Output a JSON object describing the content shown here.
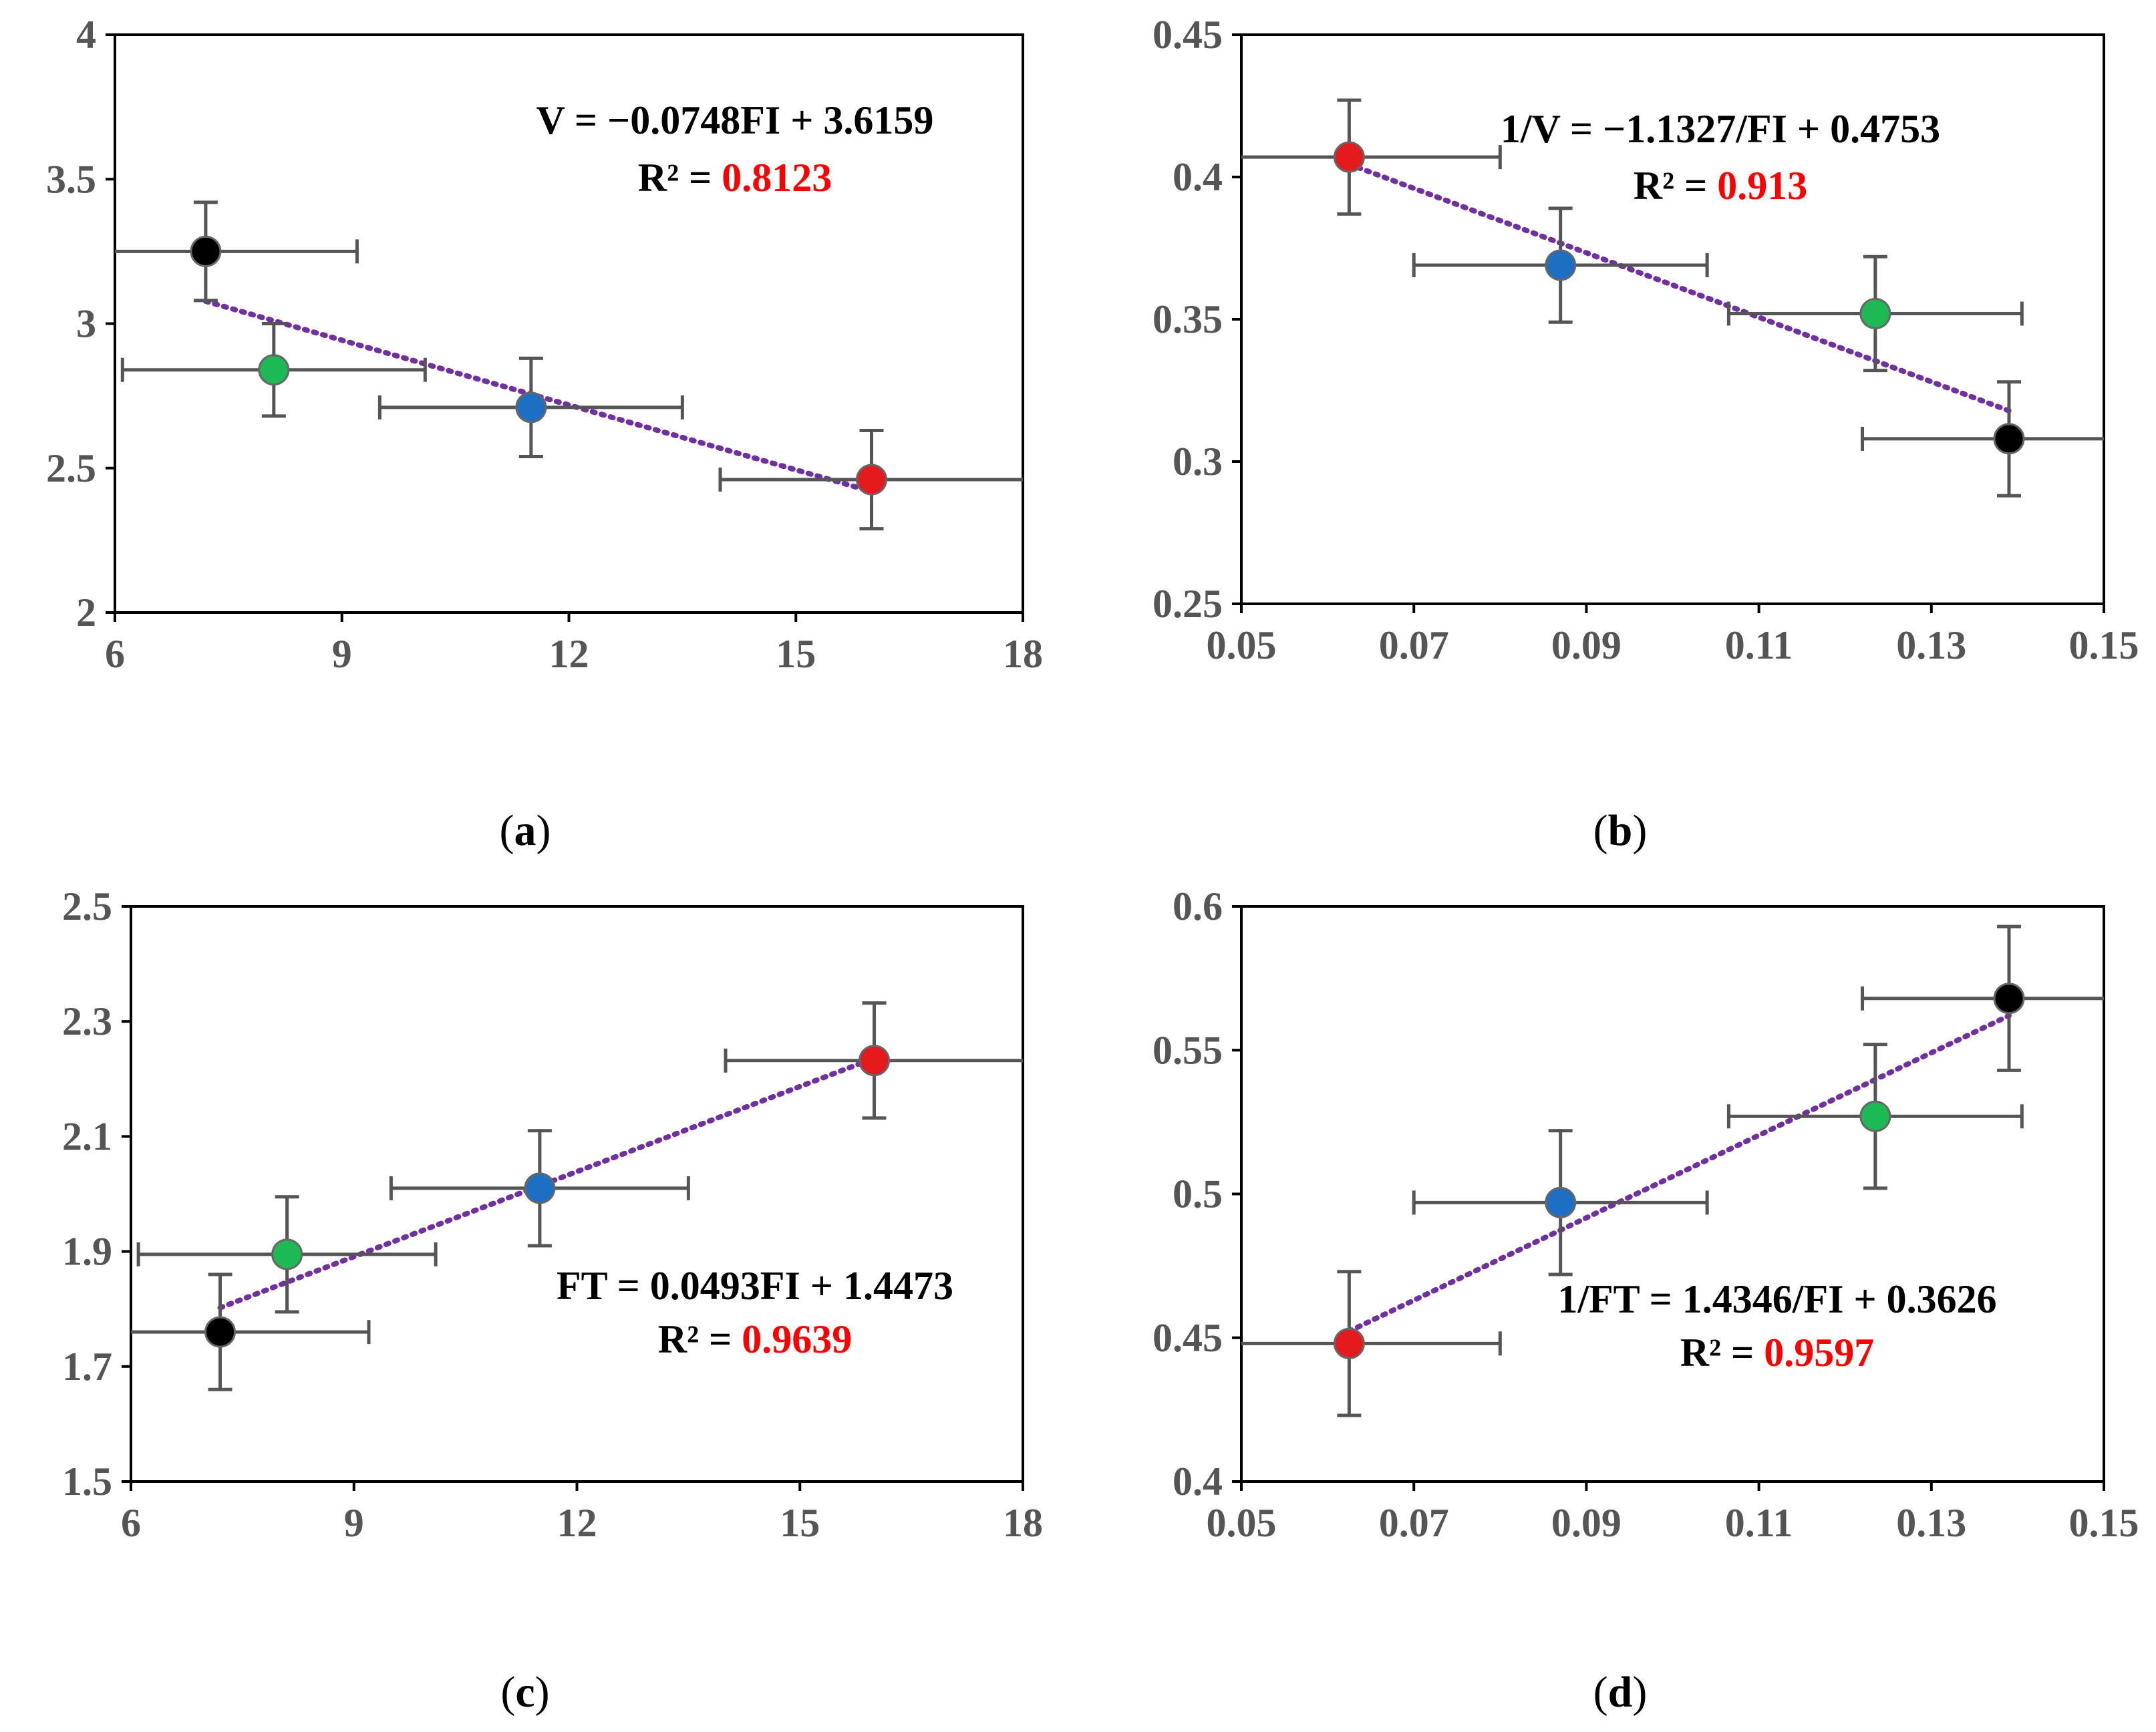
{
  "colors": {
    "black": "#000000",
    "green": "#1db954",
    "blue": "#1d6fc4",
    "red": "#e41a1c",
    "errorbar": "#555555",
    "trendline": "#7030a0",
    "r2": "#ff0000"
  },
  "chart_data": [
    {
      "id": "a",
      "type": "scatter",
      "caption": {
        "open": "(",
        "letter": "a",
        "close": ")"
      },
      "xlim": [
        6,
        18
      ],
      "ylim": [
        2,
        4
      ],
      "x_ticks": [
        "6",
        "9",
        "12",
        "15",
        "18"
      ],
      "y_ticks": [
        "2",
        "2.5",
        "3",
        "3.5",
        "4"
      ],
      "equation": "V = −0.0748FI + 3.6159",
      "r2_prefix": "R² = ",
      "r2_value": "0.8123",
      "trendline": {
        "slope": -0.0748,
        "intercept": 3.6159,
        "x_start": 7.2,
        "x_end": 15.9,
        "model": "linear"
      },
      "points": [
        {
          "name": "black",
          "color": "black",
          "x": 7.2,
          "y": 3.25,
          "x_err": [
            1.2,
            2.0
          ],
          "y_err": 0.17
        },
        {
          "name": "green",
          "color": "green",
          "x": 8.1,
          "y": 2.84,
          "x_err": [
            2.0,
            2.0
          ],
          "y_err": 0.16
        },
        {
          "name": "blue",
          "color": "blue",
          "x": 11.5,
          "y": 2.71,
          "x_err": [
            2.0,
            2.0
          ],
          "y_err": 0.17
        },
        {
          "name": "red",
          "color": "red",
          "x": 16.0,
          "y": 2.46,
          "x_err": [
            2.0,
            2.0
          ],
          "y_err": 0.17
        }
      ]
    },
    {
      "id": "b",
      "type": "scatter",
      "caption": {
        "open": "(",
        "letter": "b",
        "close": ")"
      },
      "xlim": [
        0.05,
        0.15
      ],
      "ylim": [
        0.25,
        0.45
      ],
      "x_ticks": [
        "0.05",
        "0.07",
        "0.09",
        "0.11",
        "0.13",
        "0.15"
      ],
      "y_ticks": [
        "0.25",
        "0.3",
        "0.35",
        "0.4",
        "0.45"
      ],
      "equation": "1/V = −1.1327/FI + 0.4753",
      "r2_prefix": "R² = ",
      "r2_value": "0.913",
      "trendline": {
        "slope": -1.1327,
        "intercept": 0.4753,
        "x_start": 0.0625,
        "x_end": 0.139,
        "model": "linear"
      },
      "points": [
        {
          "name": "red",
          "color": "red",
          "x": 0.0625,
          "y": 0.407,
          "x_err": [
            0.0125,
            0.0175
          ],
          "y_err": 0.02
        },
        {
          "name": "blue",
          "color": "blue",
          "x": 0.087,
          "y": 0.369,
          "x_err": [
            0.017,
            0.017
          ],
          "y_err": 0.02
        },
        {
          "name": "green",
          "color": "green",
          "x": 0.1235,
          "y": 0.352,
          "x_err": [
            0.017,
            0.017
          ],
          "y_err": 0.02
        },
        {
          "name": "black",
          "color": "black",
          "x": 0.139,
          "y": 0.308,
          "x_err": [
            0.017,
            0.011
          ],
          "y_err": 0.02
        }
      ]
    },
    {
      "id": "c",
      "type": "scatter",
      "caption": {
        "open": "(",
        "letter": "c",
        "close": ")"
      },
      "xlim": [
        6,
        18
      ],
      "ylim": [
        1.5,
        2.5
      ],
      "x_ticks": [
        "6",
        "9",
        "12",
        "15",
        "18"
      ],
      "y_ticks": [
        "1.5",
        "1.7",
        "1.9",
        "2.1",
        "2.3",
        "2.5"
      ],
      "equation": "FT = 0.0493FI + 1.4473",
      "r2_prefix": "R² = ",
      "r2_value": "0.9639",
      "trendline": {
        "slope": 0.0493,
        "intercept": 1.4473,
        "x_start": 7.2,
        "x_end": 15.9,
        "model": "linear"
      },
      "points": [
        {
          "name": "black",
          "color": "black",
          "x": 7.2,
          "y": 1.76,
          "x_err": [
            1.2,
            2.0
          ],
          "y_err": 0.1
        },
        {
          "name": "green",
          "color": "green",
          "x": 8.1,
          "y": 1.895,
          "x_err": [
            2.0,
            2.0
          ],
          "y_err": 0.1
        },
        {
          "name": "blue",
          "color": "blue",
          "x": 11.5,
          "y": 2.01,
          "x_err": [
            2.0,
            2.0
          ],
          "y_err": 0.1
        },
        {
          "name": "red",
          "color": "red",
          "x": 16.0,
          "y": 2.232,
          "x_err": [
            2.0,
            2.0
          ],
          "y_err": 0.1
        }
      ]
    },
    {
      "id": "d",
      "type": "scatter",
      "caption": {
        "open": "(",
        "letter": "d",
        "close": ")"
      },
      "xlim": [
        0.05,
        0.15
      ],
      "ylim": [
        0.4,
        0.6
      ],
      "x_ticks": [
        "0.05",
        "0.07",
        "0.09",
        "0.11",
        "0.13",
        "0.15"
      ],
      "y_ticks": [
        "0.4",
        "0.45",
        "0.5",
        "0.55",
        "0.6"
      ],
      "equation": "1/FT = 1.4346/FI + 0.3626",
      "r2_prefix": "R² = ",
      "r2_value": "0.9597",
      "trendline": {
        "slope": 1.4346,
        "intercept": 0.3626,
        "x_start": 0.0625,
        "x_end": 0.139,
        "model": "linear"
      },
      "points": [
        {
          "name": "red",
          "color": "red",
          "x": 0.0625,
          "y": 0.448,
          "x_err": [
            0.0125,
            0.0175
          ],
          "y_err": 0.025
        },
        {
          "name": "blue",
          "color": "blue",
          "x": 0.087,
          "y": 0.497,
          "x_err": [
            0.017,
            0.017
          ],
          "y_err": 0.025
        },
        {
          "name": "green",
          "color": "green",
          "x": 0.1235,
          "y": 0.527,
          "x_err": [
            0.017,
            0.017
          ],
          "y_err": 0.025
        },
        {
          "name": "black",
          "color": "black",
          "x": 0.139,
          "y": 0.568,
          "x_err": [
            0.017,
            0.011
          ],
          "y_err": 0.025
        }
      ]
    }
  ]
}
